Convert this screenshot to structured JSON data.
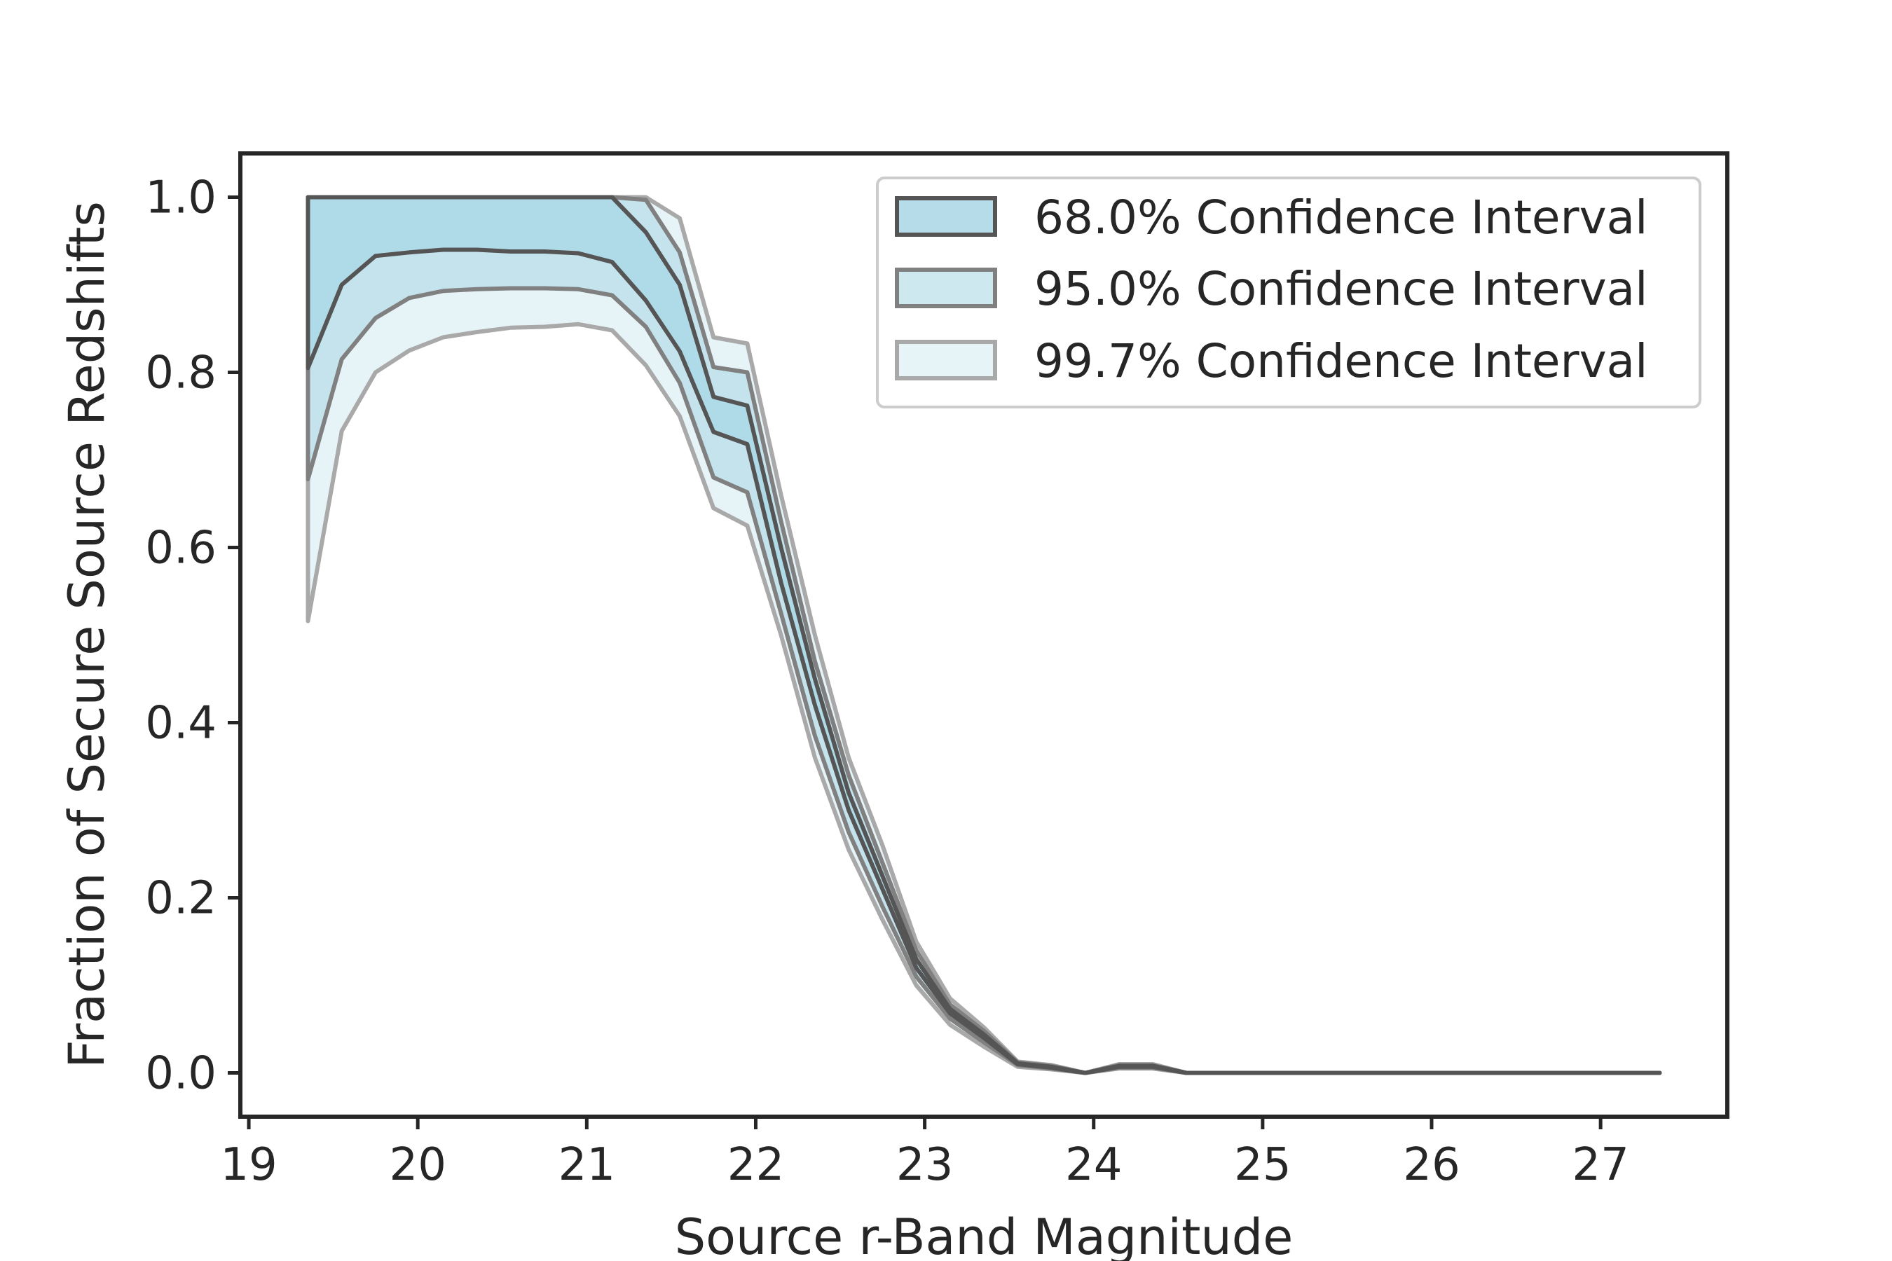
{
  "chart_data": {
    "type": "area",
    "title": "",
    "xlabel": "Source r-Band Magnitude",
    "ylabel": "Fraction of Secure Source Redshifts",
    "xlim": [
      18.95,
      27.75
    ],
    "ylim": [
      -0.05,
      1.05
    ],
    "xticks": [
      19,
      20,
      21,
      22,
      23,
      24,
      25,
      26,
      27
    ],
    "yticks": [
      0.0,
      0.2,
      0.4,
      0.6,
      0.8,
      1.0
    ],
    "xtick_labels": [
      "19",
      "20",
      "21",
      "22",
      "23",
      "24",
      "25",
      "26",
      "27"
    ],
    "ytick_labels": [
      "0.0",
      "0.2",
      "0.4",
      "0.6",
      "0.8",
      "1.0"
    ],
    "grid": false,
    "legend_position": "top-right",
    "x": [
      19.35,
      19.55,
      19.75,
      19.95,
      20.15,
      20.35,
      20.55,
      20.75,
      20.95,
      21.15,
      21.35,
      21.55,
      21.75,
      21.95,
      22.15,
      22.35,
      22.55,
      22.75,
      22.95,
      23.15,
      23.35,
      23.55,
      23.75,
      23.95,
      24.15,
      24.35,
      24.55,
      24.75,
      24.95,
      25.15,
      25.35,
      25.55,
      25.75,
      25.95,
      26.15,
      26.35,
      26.55,
      26.75,
      26.95,
      27.15,
      27.35
    ],
    "series": [
      {
        "name": "68.0% Confidence Interval",
        "color": "#add8e6",
        "alpha": 0.9,
        "edge_color": "#555555",
        "lower": [
          0.805,
          0.9,
          0.933,
          0.937,
          0.94,
          0.94,
          0.938,
          0.938,
          0.936,
          0.926,
          0.882,
          0.824,
          0.732,
          0.718,
          0.56,
          0.42,
          0.3,
          0.21,
          0.12,
          0.068,
          0.04,
          0.01,
          0.006,
          0.0,
          0.007,
          0.007,
          0.0,
          0.0,
          0.0,
          0.0,
          0.0,
          0.0,
          0.0,
          0.0,
          0.0,
          0.0,
          0.0,
          0.0,
          0.0,
          0.0,
          0.0
        ],
        "upper": [
          1.0,
          1.0,
          1.0,
          1.0,
          1.0,
          1.0,
          1.0,
          1.0,
          1.0,
          1.0,
          0.96,
          0.9,
          0.772,
          0.762,
          0.6,
          0.45,
          0.32,
          0.225,
          0.13,
          0.073,
          0.044,
          0.011,
          0.007,
          0.0,
          0.008,
          0.008,
          0.0,
          0.0,
          0.0,
          0.0,
          0.0,
          0.0,
          0.0,
          0.0,
          0.0,
          0.0,
          0.0,
          0.0,
          0.0,
          0.0,
          0.0
        ]
      },
      {
        "name": "95.0% Confidence Interval",
        "color": "#add8e6",
        "alpha": 0.6,
        "edge_color": "#808080",
        "lower": [
          0.678,
          0.815,
          0.862,
          0.885,
          0.893,
          0.895,
          0.896,
          0.896,
          0.895,
          0.888,
          0.852,
          0.788,
          0.68,
          0.663,
          0.525,
          0.385,
          0.275,
          0.19,
          0.11,
          0.062,
          0.035,
          0.009,
          0.005,
          0.0,
          0.006,
          0.006,
          0.0,
          0.0,
          0.0,
          0.0,
          0.0,
          0.0,
          0.0,
          0.0,
          0.0,
          0.0,
          0.0,
          0.0,
          0.0,
          0.0,
          0.0
        ],
        "upper": [
          1.0,
          1.0,
          1.0,
          1.0,
          1.0,
          1.0,
          1.0,
          1.0,
          1.0,
          1.0,
          0.997,
          0.937,
          0.806,
          0.8,
          0.63,
          0.47,
          0.34,
          0.24,
          0.14,
          0.078,
          0.048,
          0.012,
          0.008,
          0.0,
          0.009,
          0.009,
          0.0,
          0.0,
          0.0,
          0.0,
          0.0,
          0.0,
          0.0,
          0.0,
          0.0,
          0.0,
          0.0,
          0.0,
          0.0,
          0.0,
          0.0
        ]
      },
      {
        "name": "99.7% Confidence Interval",
        "color": "#add8e6",
        "alpha": 0.3,
        "edge_color": "#a9a9a9",
        "lower": [
          0.516,
          0.733,
          0.8,
          0.825,
          0.84,
          0.846,
          0.851,
          0.852,
          0.855,
          0.848,
          0.808,
          0.75,
          0.645,
          0.625,
          0.5,
          0.36,
          0.255,
          0.175,
          0.1,
          0.055,
          0.03,
          0.007,
          0.004,
          0.0,
          0.005,
          0.005,
          0.0,
          0.0,
          0.0,
          0.0,
          0.0,
          0.0,
          0.0,
          0.0,
          0.0,
          0.0,
          0.0,
          0.0,
          0.0,
          0.0,
          0.0
        ],
        "upper": [
          1.0,
          1.0,
          1.0,
          1.0,
          1.0,
          1.0,
          1.0,
          1.0,
          1.0,
          1.0,
          1.0,
          0.976,
          0.84,
          0.833,
          0.66,
          0.5,
          0.36,
          0.26,
          0.15,
          0.085,
          0.052,
          0.013,
          0.009,
          0.0,
          0.01,
          0.01,
          0.0,
          0.0,
          0.0,
          0.0,
          0.0,
          0.0,
          0.0,
          0.0,
          0.0,
          0.0,
          0.0,
          0.0,
          0.0,
          0.0,
          0.0
        ]
      }
    ]
  }
}
